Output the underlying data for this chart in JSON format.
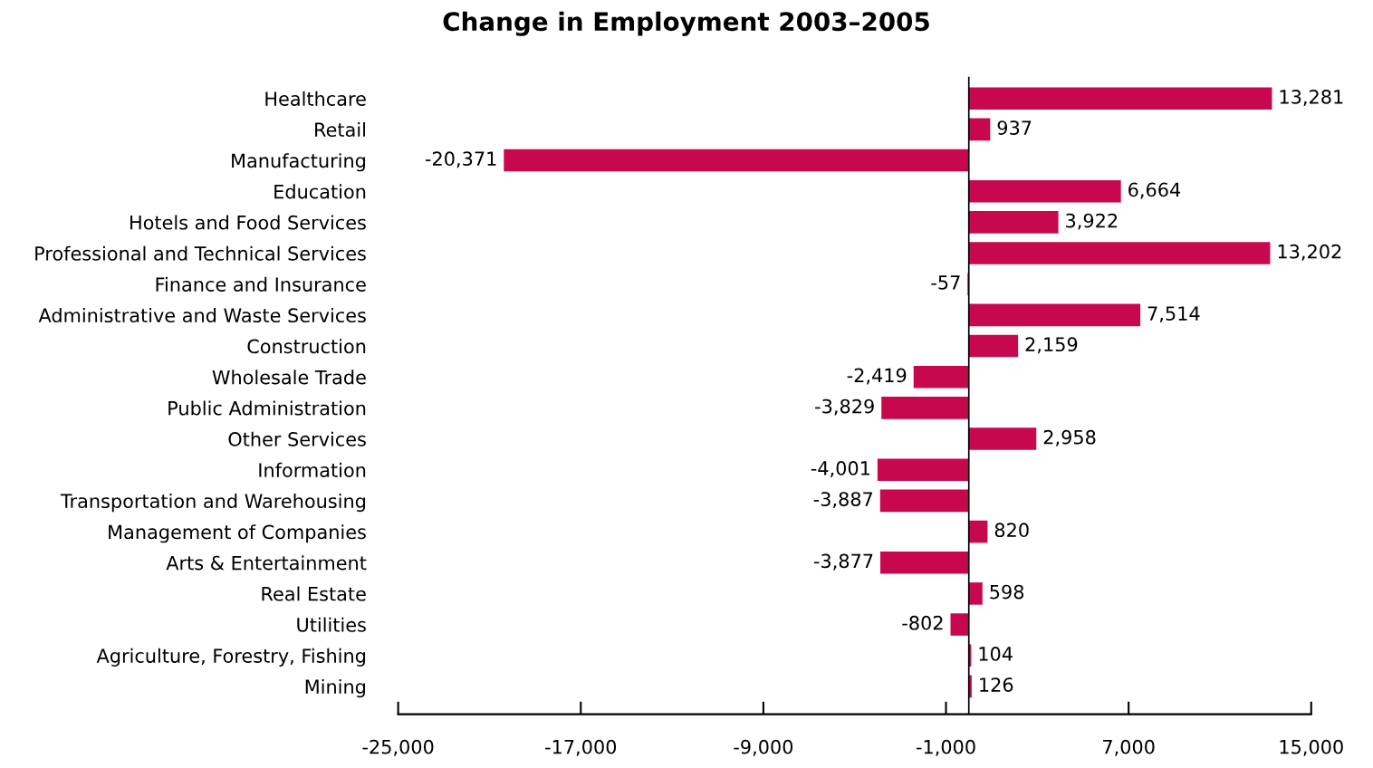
{
  "chart_data": {
    "type": "bar",
    "orientation": "horizontal",
    "title": "Change in Employment 2003–2005",
    "categories": [
      "Healthcare",
      "Retail",
      "Manufacturing",
      "Education",
      "Hotels and Food Services",
      "Professional and Technical Services",
      "Finance and Insurance",
      "Administrative and Waste Services",
      "Construction",
      "Wholesale Trade",
      "Public Administration",
      "Other Services",
      "Information",
      "Transportation and Warehousing",
      "Management of Companies",
      "Arts & Entertainment",
      "Real Estate",
      "Utilities",
      "Agriculture, Forestry, Fishing",
      "Mining"
    ],
    "values": [
      13281,
      937,
      -20371,
      6664,
      3922,
      13202,
      -57,
      7514,
      2159,
      -2419,
      -3829,
      2958,
      -4001,
      -3887,
      820,
      -3877,
      598,
      -802,
      104,
      126
    ],
    "value_labels": [
      "13,281",
      "937",
      "-20,371",
      "6,664",
      "3,922",
      "13,202",
      "-57",
      "7,514",
      "2,159",
      "-2,419",
      "-3,829",
      "2,958",
      "-4,001",
      "-3,887",
      "820",
      "-3,877",
      "598",
      "-802",
      "104",
      "126"
    ],
    "color": "#c8084e",
    "xlim": [
      -25000,
      15000
    ],
    "xticks": [
      {
        "value": -25000,
        "label": "-25,000"
      },
      {
        "value": -17000,
        "label": "-17,000"
      },
      {
        "value": -9000,
        "label": "-9,000"
      },
      {
        "value": -1000,
        "label": "-1,000"
      },
      {
        "value": 7000,
        "label": "7,000"
      },
      {
        "value": 15000,
        "label": "15,000"
      }
    ]
  }
}
